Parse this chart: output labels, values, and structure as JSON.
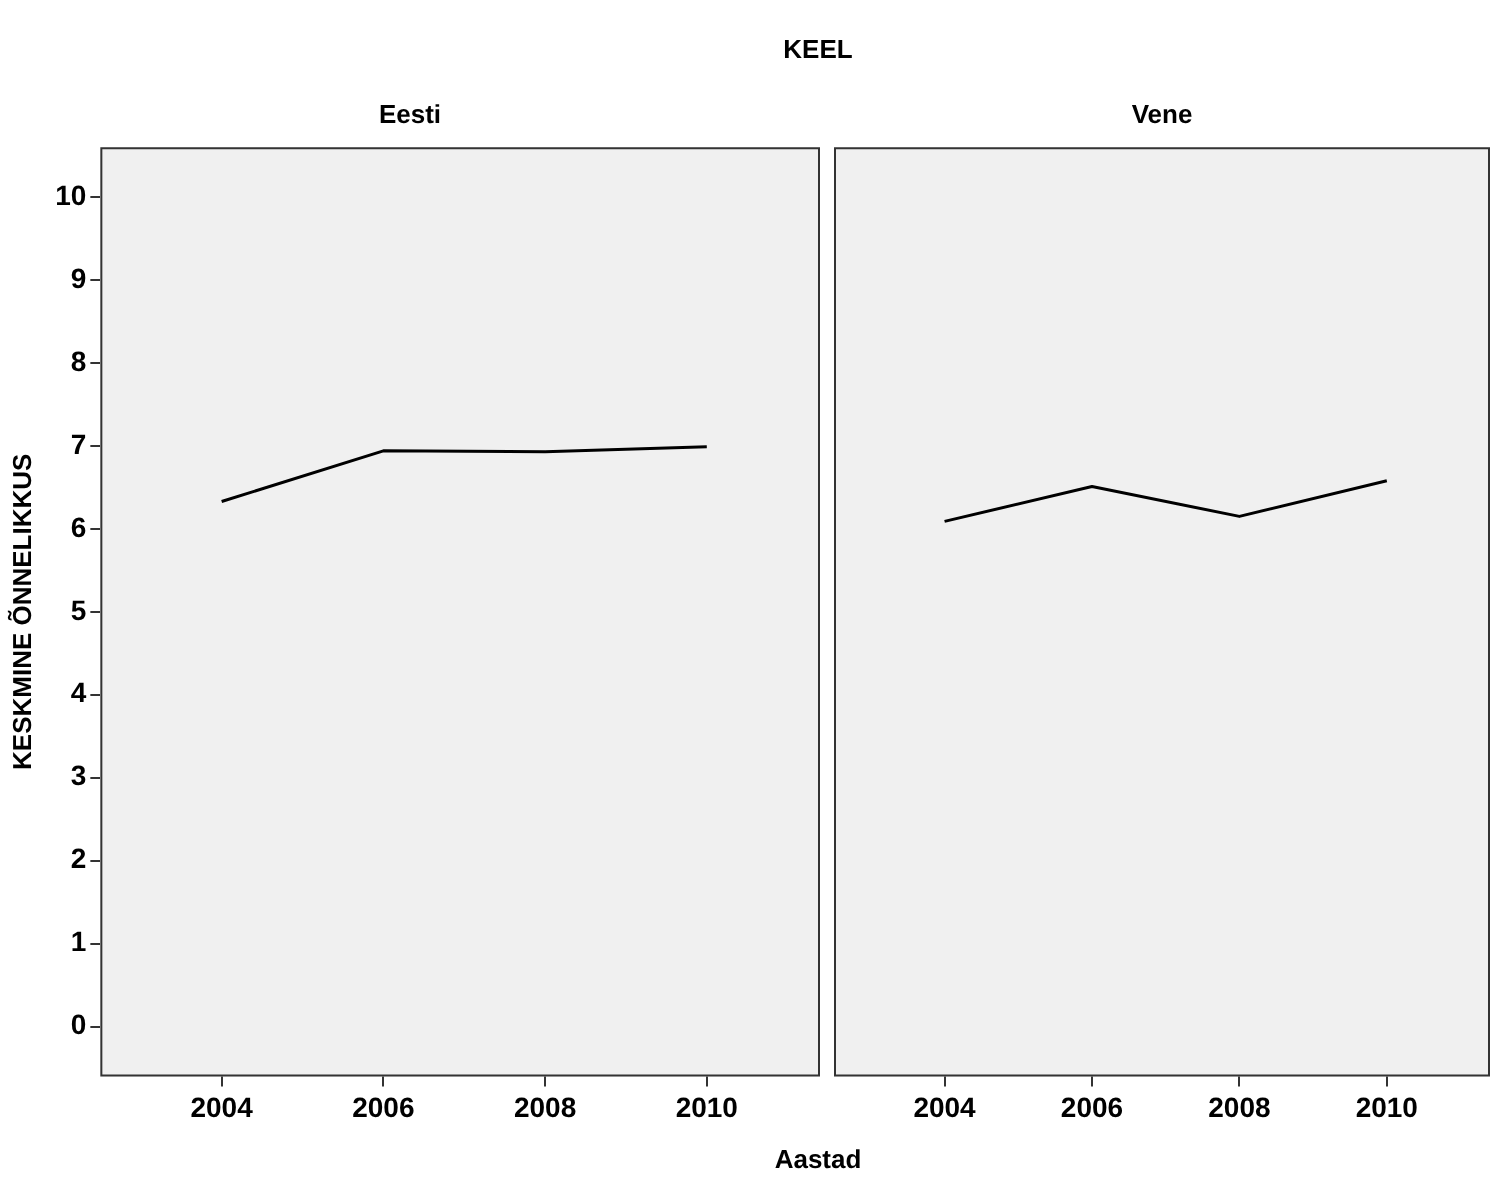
{
  "chart_data": [
    {
      "type": "line",
      "title": "Eesti",
      "xlabel": "Aastad",
      "ylabel": "KESKMINE ÕNNELIKKUS",
      "annotations": [
        "KEEL"
      ],
      "series": [
        {
          "color": "#000000",
          "x": [
            2004,
            2006,
            2008,
            2010
          ],
          "values": [
            6.33,
            6.94,
            6.93,
            6.99
          ]
        }
      ],
      "xlim": [
        2002.5,
        2011.4
      ],
      "xticks": [
        2004,
        2006,
        2008,
        2010
      ],
      "ylim": [
        -0.6,
        10.6
      ],
      "yticks": [
        0,
        1,
        2,
        3,
        4,
        5,
        6,
        7,
        8,
        9,
        10
      ],
      "grid": false,
      "legend": false,
      "marker": "none"
    },
    {
      "type": "line",
      "title": "Vene",
      "series": [
        {
          "color": "#000000",
          "x": [
            2004,
            2006,
            2008,
            2010
          ],
          "values": [
            6.09,
            6.51,
            6.15,
            6.58
          ]
        }
      ],
      "xlim": [
        2002.5,
        2011.4
      ],
      "xticks": [
        2004,
        2006,
        2008,
        2010
      ],
      "ylim": [
        -0.6,
        10.6
      ],
      "yticks": [
        0,
        1,
        2,
        3,
        4,
        5,
        6,
        7,
        8,
        9,
        10
      ],
      "tick_labels": "x",
      "grid": false,
      "legend": false,
      "marker": "none"
    }
  ]
}
